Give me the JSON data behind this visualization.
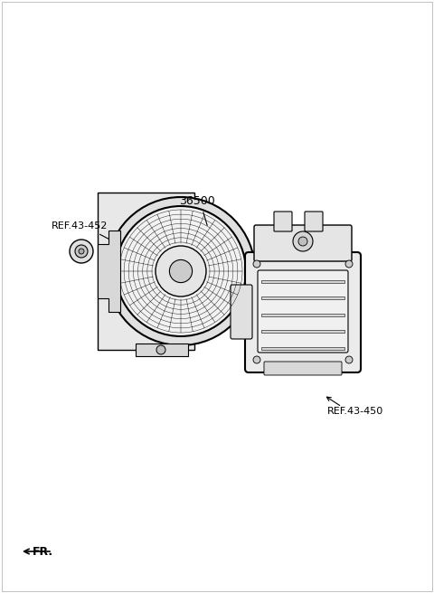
{
  "bg_color": "#ffffff",
  "line_color": "#000000",
  "gray_color": "#888888",
  "label_36500": "36500",
  "label_ref452": "REF.43-452",
  "label_ref450": "REF.43-450",
  "label_fr": "FR.",
  "fig_width": 4.8,
  "fig_height": 6.56,
  "dpi": 100
}
